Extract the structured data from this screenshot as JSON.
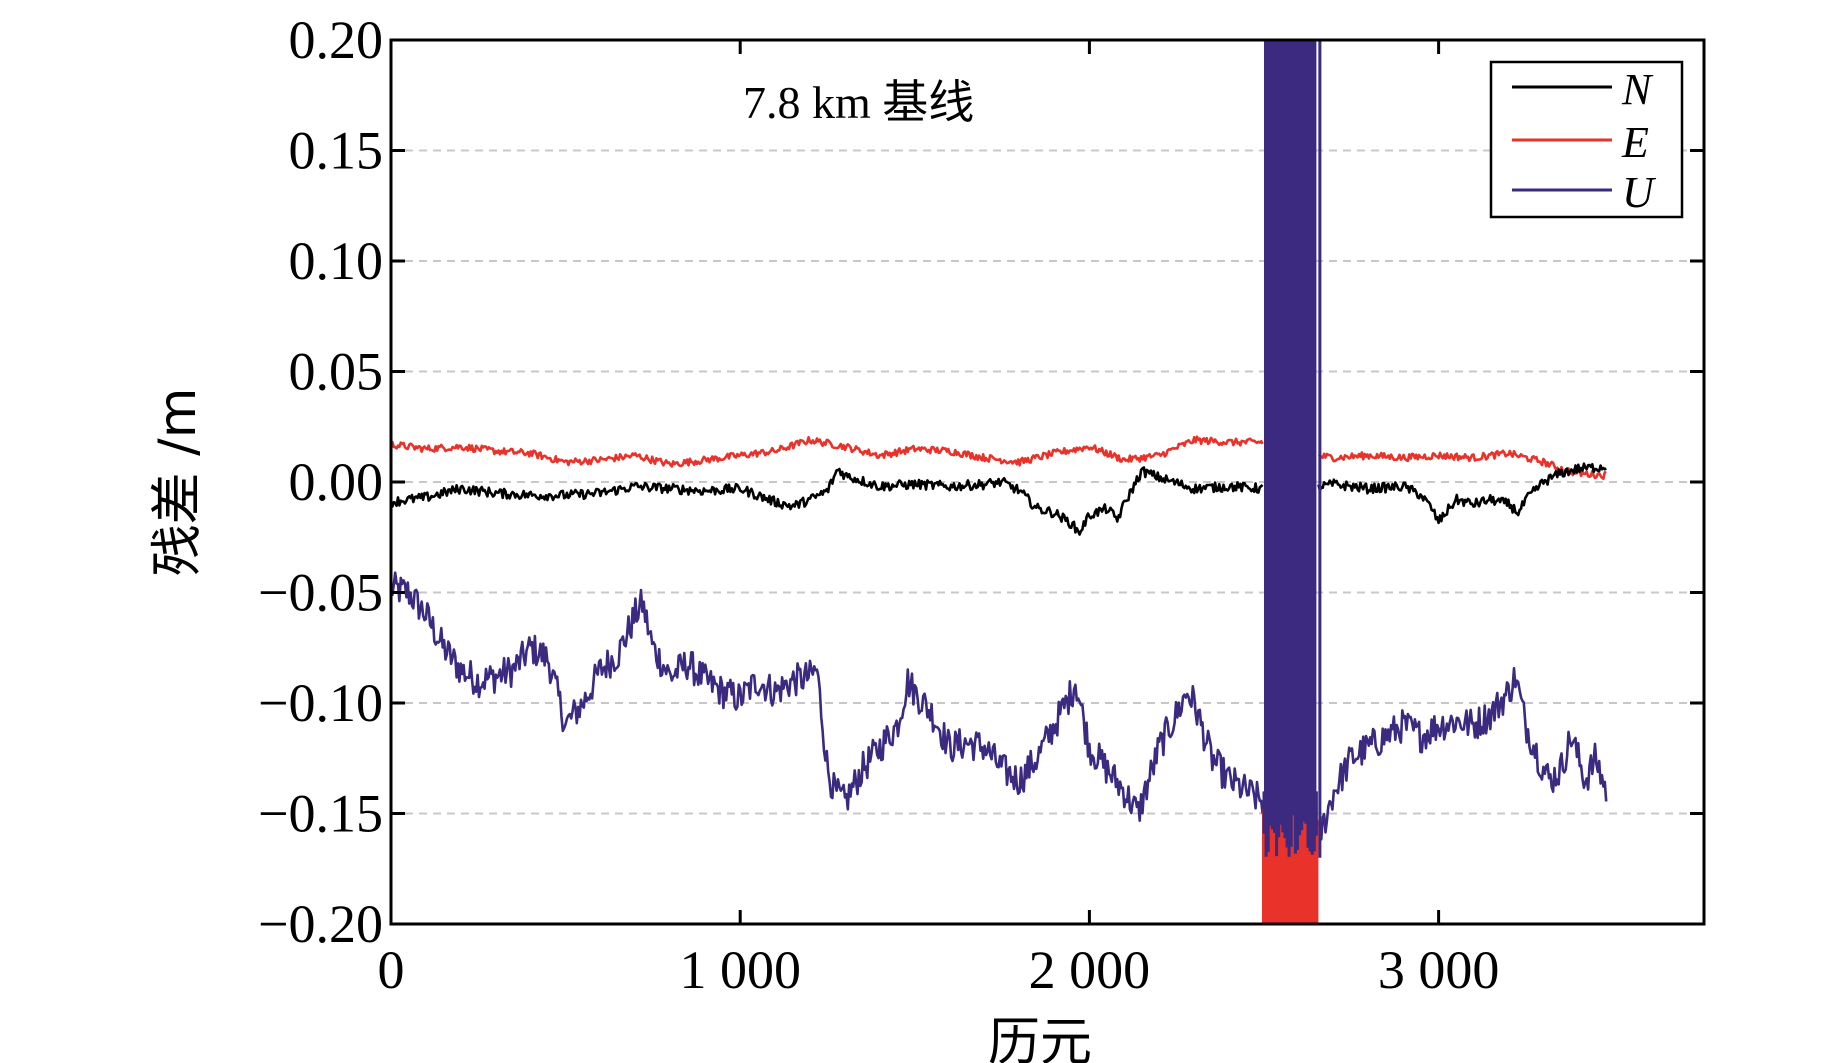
{
  "chart_data": {
    "type": "line",
    "title": "",
    "annotation": "7.8 km 基线",
    "xlabel": "历元",
    "ylabel": "残差 /m",
    "xlim": [
      0,
      3760
    ],
    "ylim": [
      -0.2,
      0.2
    ],
    "xticks": [
      0,
      1000,
      2000,
      3000
    ],
    "xtick_labels": [
      "0",
      "1 000",
      "2 000",
      "3 000"
    ],
    "yticks": [
      0.2,
      0.15,
      0.1,
      0.05,
      0.0,
      -0.05,
      -0.1,
      -0.15,
      -0.2
    ],
    "ytick_labels": [
      "0.20",
      "0.15",
      "0.10",
      "0.05",
      "0.00",
      "−0.05",
      "−0.10",
      "−0.15",
      "−0.20"
    ],
    "grid": "horizontal-dashed",
    "legend_position": "top-right",
    "noisy_segment": {
      "x_start": 2500,
      "x_end": 2650,
      "x_spike": 2660
    },
    "series": [
      {
        "name": "N",
        "color": "#000000",
        "x": [
          0,
          100,
          200,
          300,
          400,
          500,
          600,
          700,
          800,
          900,
          1000,
          1100,
          1150,
          1200,
          1250,
          1280,
          1300,
          1400,
          1500,
          1600,
          1700,
          1750,
          1800,
          1850,
          1900,
          1950,
          1970,
          2000,
          2050,
          2080,
          2100,
          2150,
          2200,
          2300,
          2400,
          2500,
          2600,
          2700,
          2800,
          2900,
          2950,
          2980,
          3000,
          3050,
          3100,
          3150,
          3200,
          3230,
          3250,
          3300,
          3350,
          3400,
          3480
        ],
        "y": [
          -0.009,
          -0.007,
          -0.003,
          -0.005,
          -0.006,
          -0.006,
          -0.005,
          -0.002,
          -0.003,
          -0.004,
          -0.003,
          -0.009,
          -0.011,
          -0.008,
          -0.004,
          0.006,
          0.003,
          -0.002,
          -0.001,
          -0.002,
          -0.001,
          0.0,
          -0.004,
          -0.012,
          -0.014,
          -0.019,
          -0.023,
          -0.015,
          -0.012,
          -0.017,
          -0.01,
          0.005,
          0.002,
          -0.003,
          -0.002,
          -0.003,
          -0.004,
          -0.001,
          -0.003,
          -0.002,
          -0.006,
          -0.012,
          -0.018,
          -0.008,
          -0.01,
          -0.008,
          -0.01,
          -0.014,
          -0.008,
          0.0,
          0.004,
          0.006,
          0.007
        ]
      },
      {
        "name": "E",
        "color": "#e8322a",
        "x": [
          0,
          100,
          200,
          300,
          400,
          500,
          600,
          700,
          800,
          900,
          1000,
          1100,
          1200,
          1300,
          1400,
          1500,
          1600,
          1700,
          1800,
          1900,
          2000,
          2100,
          2200,
          2300,
          2400,
          2500,
          2600,
          2700,
          2800,
          2900,
          3000,
          3100,
          3200,
          3300,
          3350,
          3400,
          3480
        ],
        "y": [
          0.017,
          0.015,
          0.016,
          0.014,
          0.013,
          0.009,
          0.01,
          0.012,
          0.008,
          0.01,
          0.012,
          0.014,
          0.019,
          0.016,
          0.012,
          0.015,
          0.014,
          0.011,
          0.009,
          0.013,
          0.016,
          0.01,
          0.012,
          0.019,
          0.018,
          0.018,
          0.013,
          0.011,
          0.012,
          0.011,
          0.012,
          0.011,
          0.013,
          0.009,
          0.006,
          0.004,
          0.003
        ]
      },
      {
        "name": "U",
        "color": "#3b2a80",
        "x": [
          0,
          50,
          100,
          150,
          200,
          250,
          300,
          350,
          400,
          450,
          500,
          550,
          600,
          650,
          700,
          720,
          750,
          800,
          850,
          900,
          950,
          1000,
          1050,
          1100,
          1150,
          1200,
          1220,
          1250,
          1270,
          1300,
          1350,
          1400,
          1450,
          1480,
          1500,
          1550,
          1600,
          1650,
          1700,
          1750,
          1800,
          1850,
          1900,
          1950,
          1960,
          2000,
          2050,
          2100,
          2140,
          2200,
          2250,
          2280,
          2300,
          2350,
          2400,
          2450,
          2500,
          2550,
          2600,
          2650,
          2700,
          2750,
          2800,
          2850,
          2900,
          2950,
          3000,
          3050,
          3100,
          3150,
          3200,
          3220,
          3250,
          3300,
          3320,
          3350,
          3380,
          3420,
          3450,
          3480
        ],
        "y": [
          -0.048,
          -0.05,
          -0.06,
          -0.075,
          -0.085,
          -0.09,
          -0.088,
          -0.085,
          -0.075,
          -0.08,
          -0.11,
          -0.1,
          -0.085,
          -0.078,
          -0.06,
          -0.055,
          -0.075,
          -0.088,
          -0.082,
          -0.09,
          -0.095,
          -0.098,
          -0.09,
          -0.095,
          -0.09,
          -0.088,
          -0.085,
          -0.13,
          -0.14,
          -0.145,
          -0.13,
          -0.12,
          -0.11,
          -0.09,
          -0.095,
          -0.105,
          -0.12,
          -0.118,
          -0.12,
          -0.13,
          -0.135,
          -0.125,
          -0.11,
          -0.095,
          -0.09,
          -0.12,
          -0.13,
          -0.14,
          -0.15,
          -0.12,
          -0.105,
          -0.095,
          -0.1,
          -0.125,
          -0.135,
          -0.14,
          -0.145,
          -0.15,
          -0.16,
          -0.165,
          -0.14,
          -0.125,
          -0.12,
          -0.115,
          -0.11,
          -0.115,
          -0.11,
          -0.108,
          -0.11,
          -0.105,
          -0.095,
          -0.088,
          -0.11,
          -0.13,
          -0.135,
          -0.13,
          -0.115,
          -0.135,
          -0.125,
          -0.14
        ]
      }
    ]
  }
}
